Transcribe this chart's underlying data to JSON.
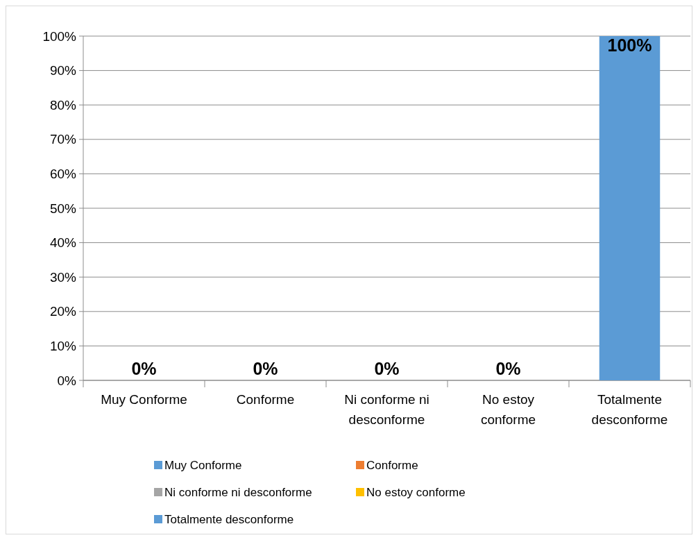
{
  "chart_data": {
    "type": "bar",
    "categories": [
      "Muy Conforme",
      "Conforme",
      "Ni conforme ni desconforme",
      "No estoy conforme",
      "Totalmente desconforme"
    ],
    "stacked": true,
    "series": [
      {
        "name": "Muy Conforme",
        "color": "#5b9bd5",
        "values": [
          0,
          null,
          null,
          null,
          null
        ],
        "value_labels": [
          "0%",
          null,
          null,
          null,
          null
        ]
      },
      {
        "name": "Conforme",
        "color": "#ed7d31",
        "values": [
          null,
          0,
          null,
          null,
          null
        ],
        "value_labels": [
          null,
          "0%",
          null,
          null,
          null
        ]
      },
      {
        "name": "Ni conforme ni desconforme",
        "color": "#a5a5a5",
        "values": [
          null,
          null,
          0,
          null,
          null
        ],
        "value_labels": [
          null,
          null,
          "0%",
          null,
          null
        ]
      },
      {
        "name": "No estoy conforme",
        "color": "#ffc000",
        "values": [
          null,
          null,
          null,
          0,
          null
        ],
        "value_labels": [
          null,
          null,
          null,
          "0%",
          null
        ]
      },
      {
        "name": "Totalmente desconforme",
        "color": "#5b9bd5",
        "values": [
          null,
          null,
          null,
          null,
          100
        ],
        "value_labels": [
          null,
          null,
          null,
          null,
          "100%"
        ]
      }
    ],
    "ylim": [
      0,
      100
    ],
    "yticks": [
      {
        "value": 0,
        "label": "0%"
      },
      {
        "value": 10,
        "label": "10%"
      },
      {
        "value": 20,
        "label": "20%"
      },
      {
        "value": 30,
        "label": "30%"
      },
      {
        "value": 40,
        "label": "40%"
      },
      {
        "value": 50,
        "label": "50%"
      },
      {
        "value": 60,
        "label": "60%"
      },
      {
        "value": 70,
        "label": "70%"
      },
      {
        "value": 80,
        "label": "80%"
      },
      {
        "value": 90,
        "label": "90%"
      },
      {
        "value": 100,
        "label": "100%"
      }
    ],
    "grid": "y",
    "legend": "bottom"
  }
}
